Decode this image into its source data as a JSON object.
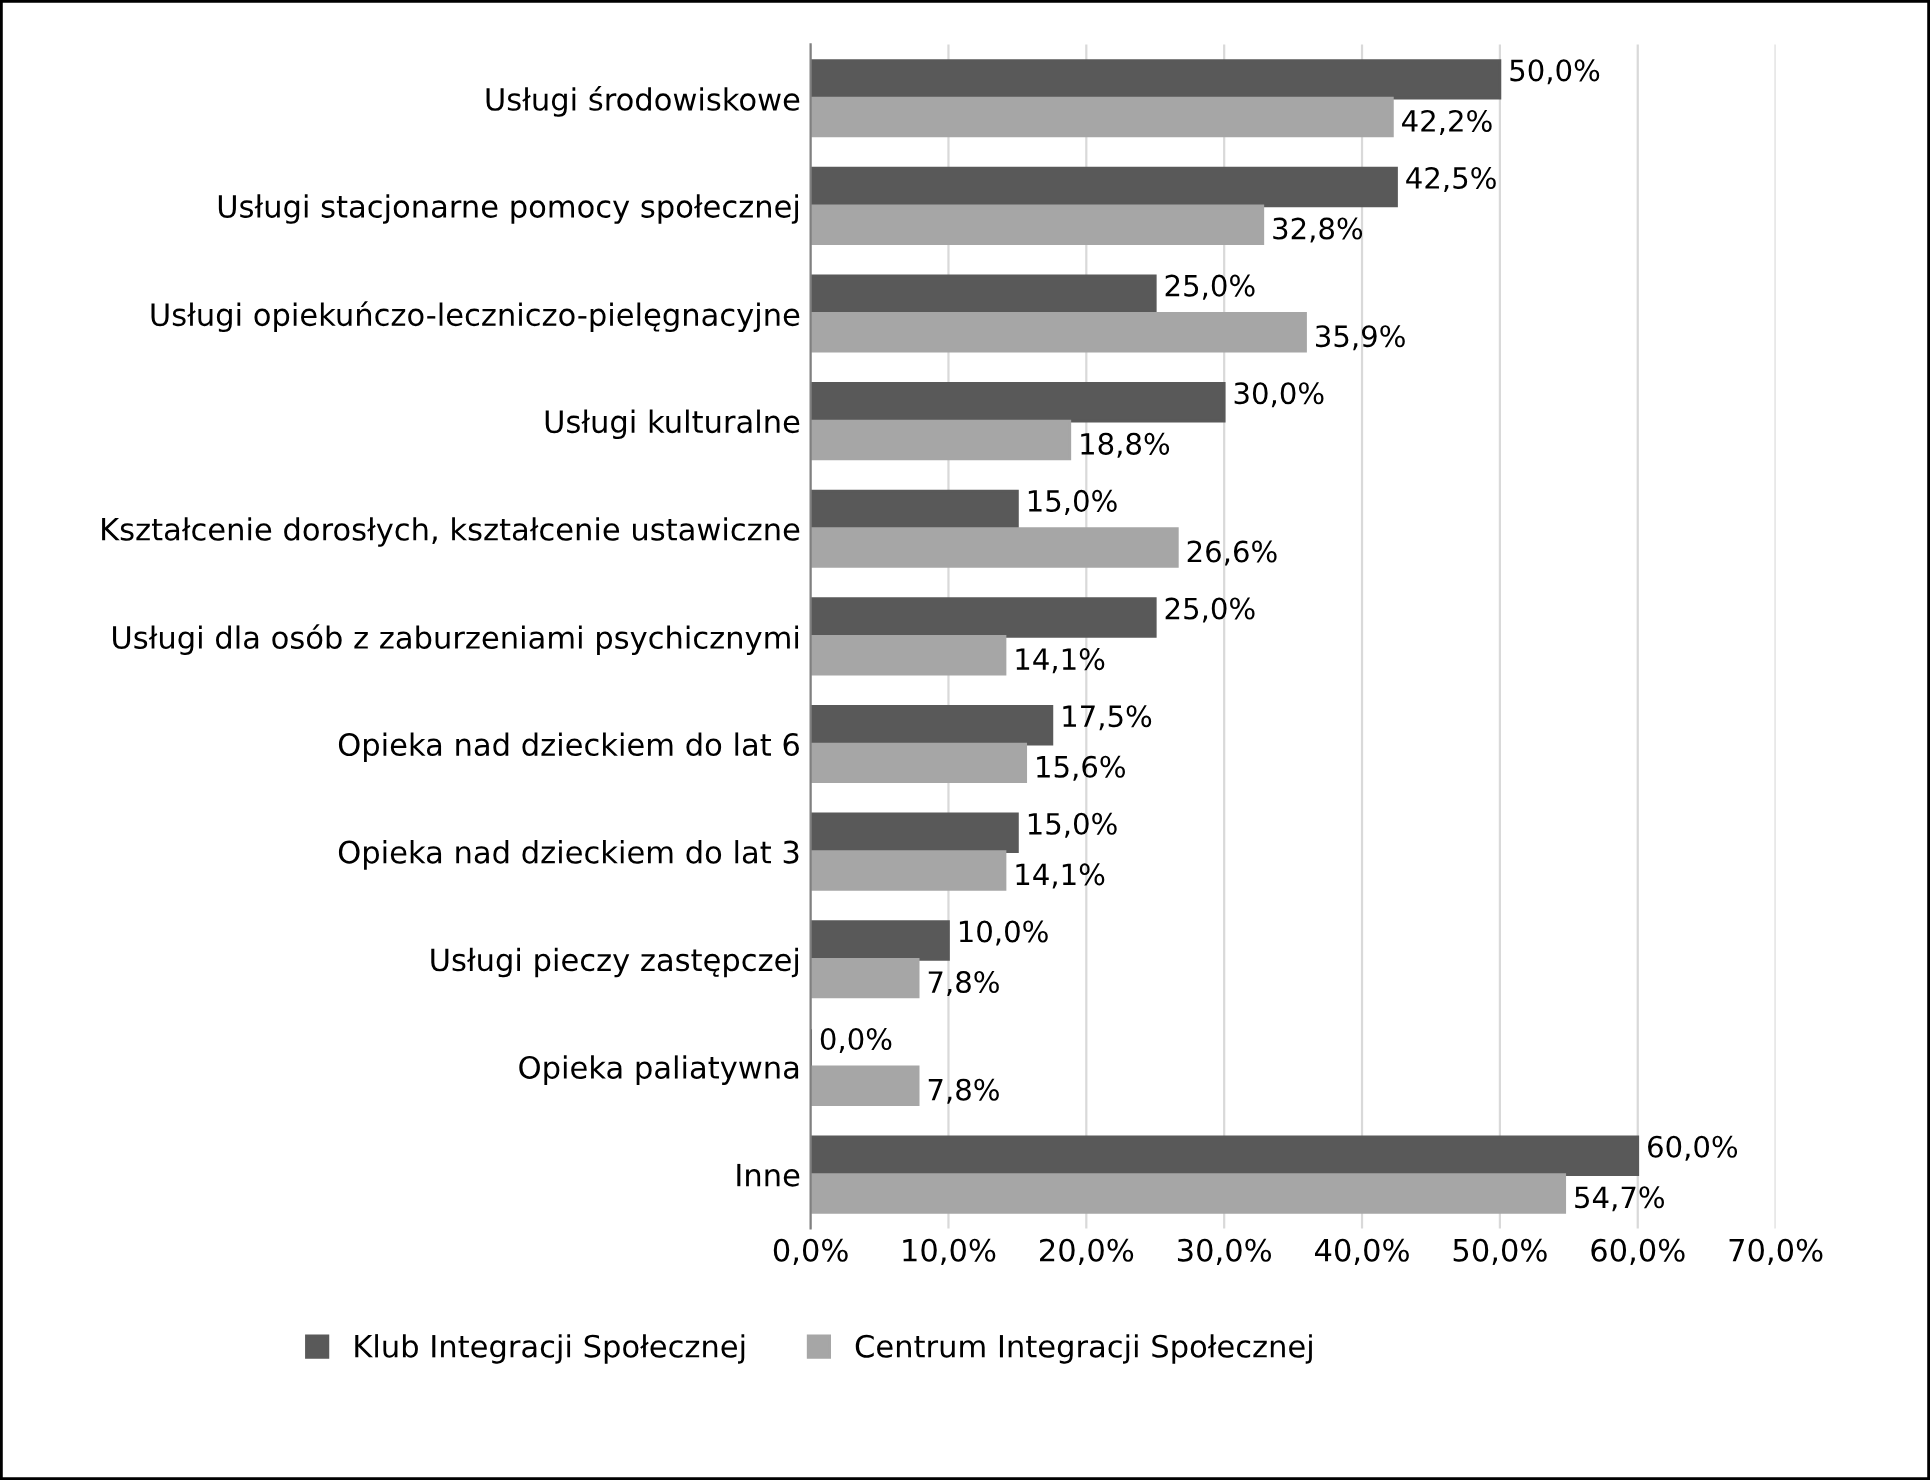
{
  "chart_data": {
    "type": "bar",
    "orientation": "horizontal",
    "categories": [
      "Usługi środowiskowe",
      "Usługi stacjonarne pomocy społecznej",
      "Usługi opiekuńczo-leczniczo-pielęgnacyjne",
      "Usługi kulturalne",
      "Kształcenie dorosłych, kształcenie ustawiczne",
      "Usługi dla osób z zaburzeniami psychicznymi",
      "Opieka nad dzieckiem do lat 6",
      "Opieka nad dzieckiem do lat 3",
      "Usługi pieczy zastępczej",
      "Opieka paliatywna",
      "Inne"
    ],
    "series": [
      {
        "name": "Klub Integracji Społecznej",
        "color": "#595959",
        "values": [
          50.0,
          42.5,
          25.0,
          30.0,
          15.0,
          25.0,
          17.5,
          15.0,
          10.0,
          0.0,
          60.0
        ],
        "value_labels": [
          "50,0%",
          "42,5%",
          "25,0%",
          "30,0%",
          "15,0%",
          "25,0%",
          "17,5%",
          "15,0%",
          "10,0%",
          "0,0%",
          "60,0%"
        ]
      },
      {
        "name": "Centrum Integracji Społecznej",
        "color": "#a6a6a6",
        "values": [
          42.2,
          32.8,
          35.9,
          18.8,
          26.6,
          14.1,
          15.6,
          14.1,
          7.8,
          7.8,
          54.7
        ],
        "value_labels": [
          "42,2%",
          "32,8%",
          "35,9%",
          "18,8%",
          "26,6%",
          "14,1%",
          "15,6%",
          "14,1%",
          "7,8%",
          "7,8%",
          "54,7%"
        ]
      }
    ],
    "xlim": [
      0,
      70
    ],
    "xticks": [
      {
        "value": 0,
        "label": "0,0%"
      },
      {
        "value": 10,
        "label": "10,0%"
      },
      {
        "value": 20,
        "label": "20,0%"
      },
      {
        "value": 30,
        "label": "30,0%"
      },
      {
        "value": 40,
        "label": "40,0%"
      },
      {
        "value": 50,
        "label": "50,0%"
      },
      {
        "value": 60,
        "label": "60,0%"
      },
      {
        "value": 70,
        "label": "70,0%"
      }
    ],
    "grid": "x",
    "legend": "bottom"
  }
}
